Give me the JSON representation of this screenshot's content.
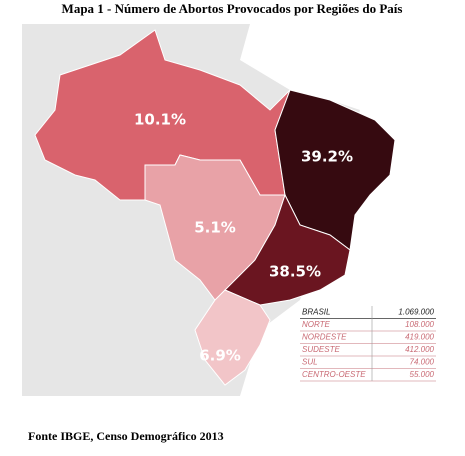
{
  "title": "Mapa 1 - Número de Abortos Provocados por Regiões do País",
  "regions": [
    {
      "label": "10.1%"
    },
    {
      "label": "39.2%"
    },
    {
      "label": "5.1%"
    },
    {
      "label": "38.5%"
    },
    {
      "label": "6.9%"
    }
  ],
  "table": {
    "rows": [
      [
        "BRASIL",
        "1.069.000"
      ],
      [
        "NORTE",
        "108.000"
      ],
      [
        "NORDESTE",
        "419.000"
      ],
      [
        "SUDESTE",
        "412.000"
      ],
      [
        "SUL",
        "74.000"
      ],
      [
        "CENTRO-OESTE",
        "55.000"
      ]
    ]
  },
  "source": "Fonte IBGE, Censo Demográfico 2013"
}
